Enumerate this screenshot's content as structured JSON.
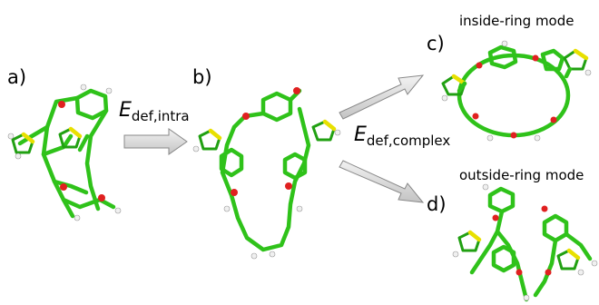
{
  "panels": [
    {
      "label": "a)"
    },
    {
      "label": "b)"
    },
    {
      "label": "c)",
      "caption": "inside-ring mode"
    },
    {
      "label": "d)",
      "caption": "outside-ring mode"
    }
  ],
  "arrows": [
    {
      "symbol": "E",
      "subscript": "def,intra"
    },
    {
      "symbol": "E",
      "subscript": "def,complex"
    }
  ]
}
